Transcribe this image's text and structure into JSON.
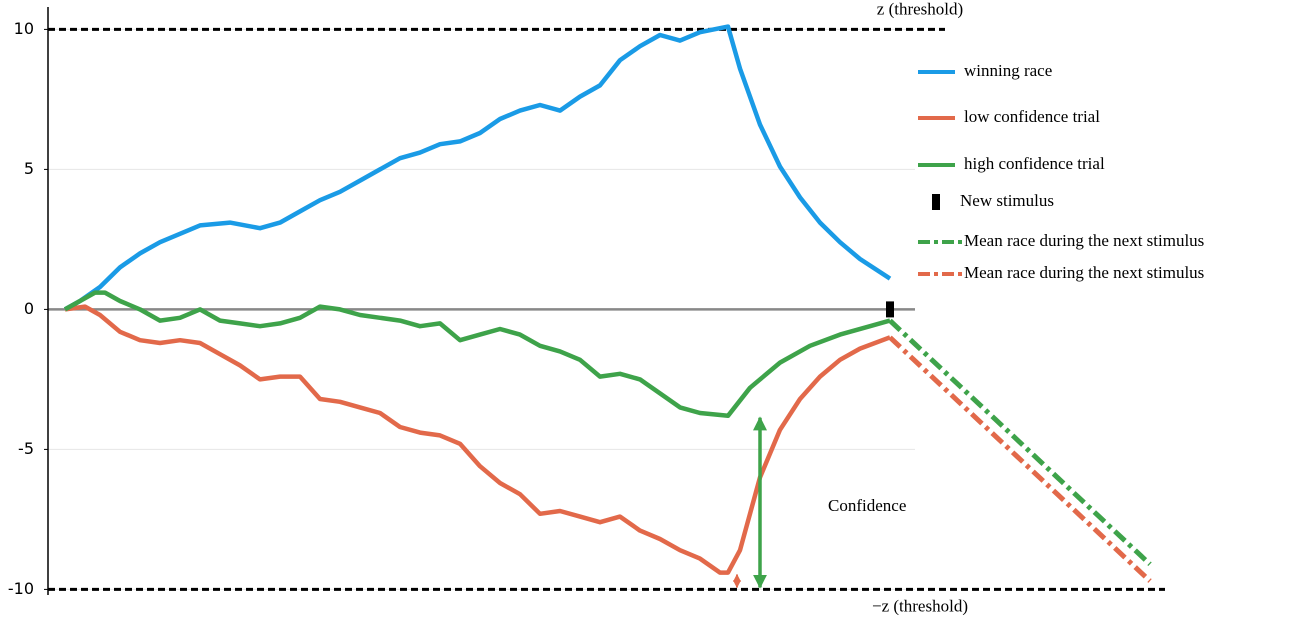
{
  "chart_data": {
    "type": "line",
    "ylim": [
      -10.2,
      10.8
    ],
    "yticks": [
      -10,
      -5,
      0,
      5,
      10
    ],
    "xlim": [
      -17,
      1100
    ],
    "grid": true,
    "thresholds": [
      {
        "value": 10,
        "label": "z (threshold)"
      },
      {
        "value": -10,
        "label": "−z (threshold)"
      }
    ],
    "series": [
      {
        "name": "winning race",
        "color": "#1a9be6",
        "style": "solid",
        "x": [
          0,
          15,
          35,
          55,
          75,
          95,
          115,
          135,
          165,
          195,
          215,
          235,
          255,
          275,
          295,
          315,
          335,
          355,
          375,
          395,
          415,
          435,
          455,
          475,
          495,
          515,
          535,
          555,
          575,
          595,
          615,
          635,
          663,
          675,
          695,
          715,
          735,
          755,
          775,
          795,
          825
        ],
        "values": [
          0,
          0.3,
          0.8,
          1.5,
          2.0,
          2.4,
          2.7,
          3.0,
          3.1,
          2.9,
          3.1,
          3.5,
          3.9,
          4.2,
          4.6,
          5.0,
          5.4,
          5.6,
          5.9,
          6.0,
          6.3,
          6.8,
          7.1,
          7.3,
          7.1,
          7.6,
          8.0,
          8.9,
          9.4,
          9.8,
          9.6,
          9.9,
          10.1,
          8.6,
          6.6,
          5.1,
          4.0,
          3.1,
          2.4,
          1.8,
          1.1
        ]
      },
      {
        "name": "low confidence trial",
        "color": "#e2694a",
        "style": "solid",
        "x": [
          0,
          20,
          35,
          55,
          75,
          95,
          115,
          135,
          155,
          175,
          195,
          215,
          235,
          255,
          275,
          295,
          315,
          335,
          355,
          375,
          395,
          415,
          435,
          455,
          475,
          495,
          515,
          535,
          555,
          575,
          595,
          615,
          635,
          655,
          663,
          675,
          695,
          715,
          735,
          755,
          775,
          795,
          825
        ],
        "values": [
          0,
          0.1,
          -0.2,
          -0.8,
          -1.1,
          -1.2,
          -1.1,
          -1.2,
          -1.6,
          -2.0,
          -2.5,
          -2.4,
          -2.4,
          -3.2,
          -3.3,
          -3.5,
          -3.7,
          -4.2,
          -4.4,
          -4.5,
          -4.8,
          -5.6,
          -6.2,
          -6.6,
          -7.3,
          -7.2,
          -7.4,
          -7.6,
          -7.4,
          -7.9,
          -8.2,
          -8.6,
          -8.9,
          -9.4,
          -9.4,
          -8.6,
          -6.0,
          -4.3,
          -3.2,
          -2.4,
          -1.8,
          -1.4,
          -1.0
        ]
      },
      {
        "name": "high confidence trial",
        "color": "#3ea34a",
        "style": "solid",
        "x": [
          0,
          15,
          30,
          40,
          55,
          75,
          95,
          115,
          135,
          155,
          175,
          195,
          215,
          235,
          255,
          275,
          295,
          315,
          335,
          355,
          375,
          395,
          415,
          435,
          455,
          475,
          495,
          515,
          535,
          555,
          575,
          595,
          615,
          635,
          663,
          685,
          715,
          745,
          775,
          805,
          825
        ],
        "values": [
          0,
          0.3,
          0.6,
          0.6,
          0.3,
          0,
          -0.4,
          -0.3,
          0,
          -0.4,
          -0.5,
          -0.6,
          -0.5,
          -0.3,
          0.1,
          0,
          -0.2,
          -0.3,
          -0.4,
          -0.6,
          -0.5,
          -1.1,
          -0.9,
          -0.7,
          -0.9,
          -1.3,
          -1.5,
          -1.8,
          -2.4,
          -2.3,
          -2.5,
          -3.0,
          -3.5,
          -3.7,
          -3.8,
          -2.8,
          -1.9,
          -1.3,
          -0.9,
          -0.6,
          -0.4
        ]
      },
      {
        "name": "New stimulus",
        "color": "#000000",
        "style": "marker",
        "x": [
          825
        ],
        "values": [
          0
        ]
      },
      {
        "name": "Mean race during the next stimulus",
        "color": "#3ea34a",
        "style": "dashdot",
        "x": [
          825,
          1085
        ],
        "values": [
          -0.4,
          -9.1
        ]
      },
      {
        "name": "Mean race during the next stimulus",
        "color": "#e2694a",
        "style": "dashdot",
        "x": [
          825,
          1085
        ],
        "values": [
          -1.0,
          -9.7
        ]
      }
    ],
    "confidence_arrows": [
      {
        "x": 695,
        "from": -3.8,
        "to": -10,
        "color": "#3ea34a"
      },
      {
        "x": 672,
        "from": -9.4,
        "to": -10,
        "color": "#e2694a"
      }
    ],
    "annotation": "Confidence"
  }
}
